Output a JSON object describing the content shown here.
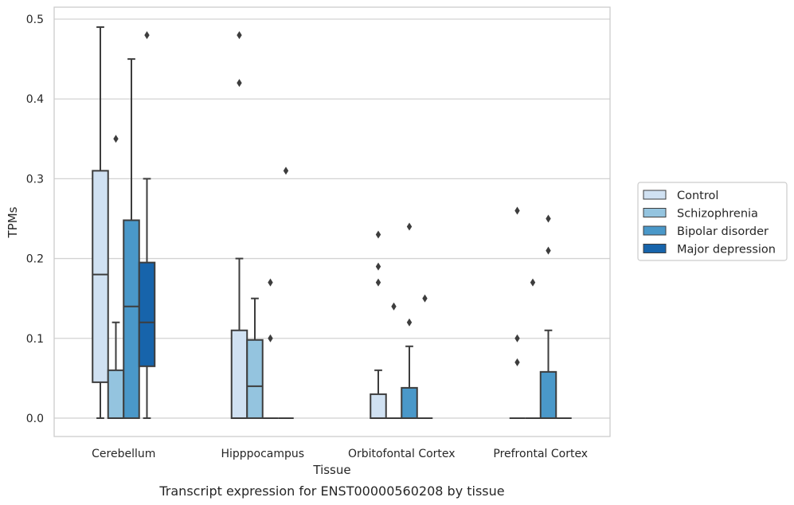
{
  "chart_data": {
    "type": "box",
    "xlabel": "Tissue",
    "ylabel": "TPMs",
    "caption": "Transcript expression for ENST00000560208 by tissue",
    "ylim": [
      -0.023,
      0.515
    ],
    "yticks": [
      0.0,
      0.1,
      0.2,
      0.3,
      0.4,
      0.5
    ],
    "ytick_labels": [
      "0.0",
      "0.1",
      "0.2",
      "0.3",
      "0.4",
      "0.5"
    ],
    "grid": "horizontal",
    "legend_position": "right",
    "categories": [
      "Cerebellum",
      "Hipppocampus",
      "Orbitofontal Cortex",
      "Prefrontal Cortex"
    ],
    "series": [
      {
        "name": "Control",
        "color": "#d0e1f2",
        "boxes": [
          {
            "whislo": 0.0,
            "q1": 0.045,
            "med": 0.18,
            "q3": 0.31,
            "whishi": 0.49,
            "fliers": []
          },
          {
            "whislo": 0.0,
            "q1": 0.0,
            "med": 0.0,
            "q3": 0.11,
            "whishi": 0.2,
            "fliers": [
              0.42,
              0.48
            ]
          },
          {
            "whislo": 0.0,
            "q1": 0.0,
            "med": 0.0,
            "q3": 0.03,
            "whishi": 0.06,
            "fliers": [
              0.17,
              0.19,
              0.23
            ]
          },
          {
            "whislo": 0.0,
            "q1": 0.0,
            "med": 0.0,
            "q3": 0.0,
            "whishi": 0.0,
            "fliers": [
              0.07,
              0.1,
              0.26
            ]
          }
        ]
      },
      {
        "name": "Schizophrenia",
        "color": "#94c4df",
        "boxes": [
          {
            "whislo": 0.0,
            "q1": 0.0,
            "med": 0.0,
            "q3": 0.06,
            "whishi": 0.12,
            "fliers": [
              0.35
            ]
          },
          {
            "whislo": 0.0,
            "q1": 0.0,
            "med": 0.04,
            "q3": 0.098,
            "whishi": 0.15,
            "fliers": []
          },
          {
            "whislo": 0.0,
            "q1": 0.0,
            "med": 0.0,
            "q3": 0.0,
            "whishi": 0.0,
            "fliers": [
              0.14
            ]
          },
          {
            "whislo": 0.0,
            "q1": 0.0,
            "med": 0.0,
            "q3": 0.0,
            "whishi": 0.0,
            "fliers": [
              0.17
            ]
          }
        ]
      },
      {
        "name": "Bipolar disorder",
        "color": "#4a98c9",
        "boxes": [
          {
            "whislo": 0.0,
            "q1": 0.0,
            "med": 0.14,
            "q3": 0.248,
            "whishi": 0.45,
            "fliers": []
          },
          {
            "whislo": 0.0,
            "q1": 0.0,
            "med": 0.0,
            "q3": 0.0,
            "whishi": 0.0,
            "fliers": [
              0.1,
              0.17
            ]
          },
          {
            "whislo": 0.0,
            "q1": 0.0,
            "med": 0.0,
            "q3": 0.038,
            "whishi": 0.09,
            "fliers": [
              0.12,
              0.24
            ]
          },
          {
            "whislo": 0.0,
            "q1": 0.0,
            "med": 0.0,
            "q3": 0.058,
            "whishi": 0.11,
            "fliers": [
              0.21,
              0.25
            ]
          }
        ]
      },
      {
        "name": "Major depression",
        "color": "#1764ab",
        "boxes": [
          {
            "whislo": 0.0,
            "q1": 0.065,
            "med": 0.12,
            "q3": 0.195,
            "whishi": 0.3,
            "fliers": [
              0.48
            ]
          },
          {
            "whislo": 0.0,
            "q1": 0.0,
            "med": 0.0,
            "q3": 0.0,
            "whishi": 0.0,
            "fliers": [
              0.31
            ]
          },
          {
            "whislo": 0.0,
            "q1": 0.0,
            "med": 0.0,
            "q3": 0.0,
            "whishi": 0.0,
            "fliers": [
              0.15
            ]
          },
          {
            "whislo": 0.0,
            "q1": 0.0,
            "med": 0.0,
            "q3": 0.0,
            "whishi": 0.0,
            "fliers": []
          }
        ]
      }
    ]
  }
}
